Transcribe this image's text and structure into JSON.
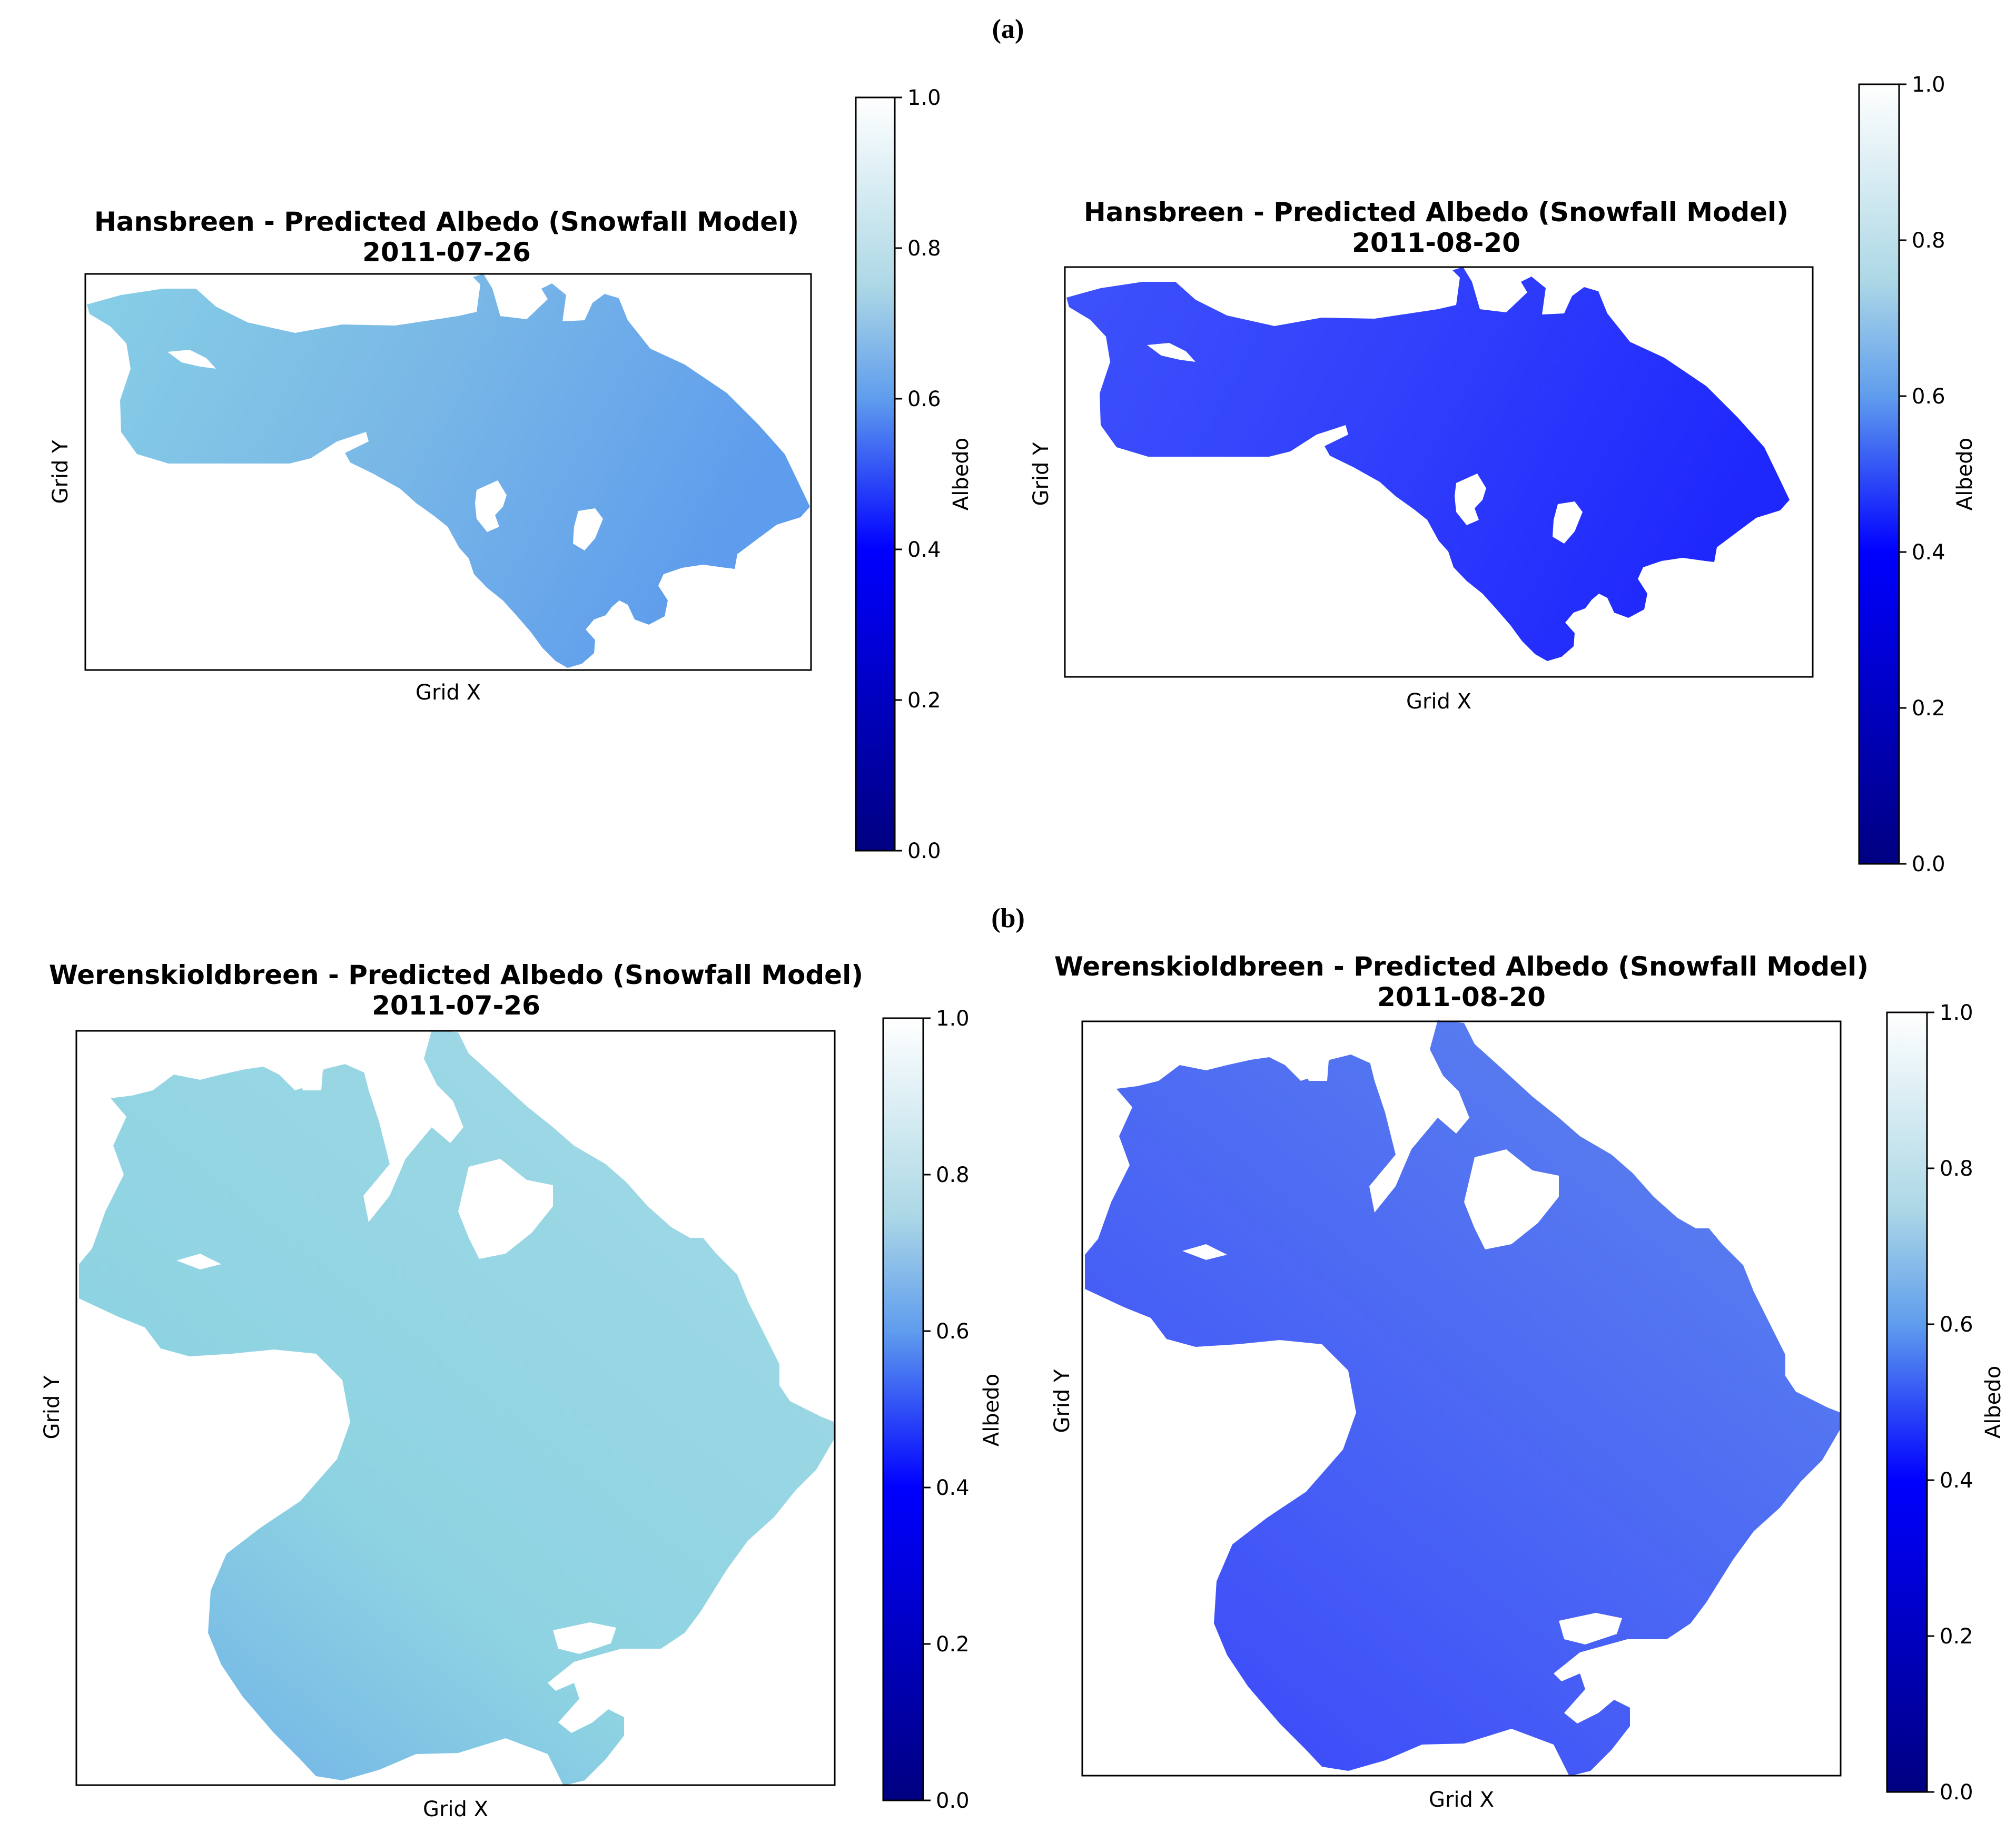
{
  "panel_labels": [
    "(a)",
    "(b)"
  ],
  "colorbar": {
    "label": "Albedo",
    "ticks": [
      "0.0",
      "0.2",
      "0.4",
      "0.6",
      "0.8",
      "1.0"
    ],
    "colormap": [
      "#000080",
      "#0000ff",
      "#5f9ded",
      "#add8e6",
      "#ffffff"
    ]
  },
  "chart_data": [
    {
      "type": "heatmap",
      "title": "Hansbreen - Predicted Albedo (Snowfall Model)",
      "subtitle": "2011-07-26",
      "xlabel": "Grid X",
      "ylabel": "Grid Y",
      "colorbar_label": "Albedo",
      "vmin": 0.0,
      "vmax": 1.0,
      "albedo_range": [
        0.62,
        0.72
      ],
      "grid": false
    },
    {
      "type": "heatmap",
      "title": "Hansbreen - Predicted Albedo (Snowfall Model)",
      "subtitle": "2011-08-20",
      "xlabel": "Grid X",
      "ylabel": "Grid Y",
      "colorbar_label": "Albedo",
      "vmin": 0.0,
      "vmax": 1.0,
      "albedo_range": [
        0.45,
        0.52
      ],
      "grid": false
    },
    {
      "type": "heatmap",
      "title": "Werenskioldbreen - Predicted Albedo (Snowfall Model)",
      "subtitle": "2011-07-26",
      "xlabel": "Grid X",
      "ylabel": "Grid Y",
      "colorbar_label": "Albedo",
      "vmin": 0.0,
      "vmax": 1.0,
      "albedo_range": [
        0.62,
        0.72
      ],
      "grid": false
    },
    {
      "type": "heatmap",
      "title": "Werenskioldbreen - Predicted Albedo (Snowfall Model)",
      "subtitle": "2011-08-20",
      "xlabel": "Grid X",
      "ylabel": "Grid Y",
      "colorbar_label": "Albedo",
      "vmin": 0.0,
      "vmax": 1.0,
      "albedo_range": [
        0.5,
        0.58
      ],
      "grid": false
    }
  ]
}
